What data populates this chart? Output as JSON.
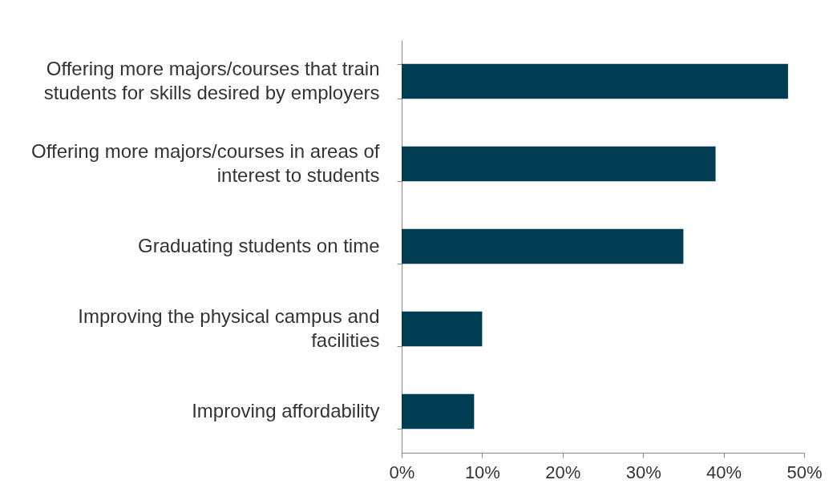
{
  "chart_data": {
    "type": "bar",
    "orientation": "horizontal",
    "categories": [
      "Offering more majors/courses that train students for skills desired by employers",
      "Offering more majors/courses in areas of interest to students",
      "Graduating students on time",
      "Improving the physical campus and facilities",
      "Improving affordability"
    ],
    "values": [
      48,
      39,
      35,
      10,
      9
    ],
    "color": "#003d52",
    "xlim": [
      0,
      50
    ],
    "xticks": [
      {
        "value": 0,
        "label": "0%"
      },
      {
        "value": 10,
        "label": "10%"
      },
      {
        "value": 20,
        "label": "20%"
      },
      {
        "value": 30,
        "label": "30%"
      },
      {
        "value": 40,
        "label": "40%"
      },
      {
        "value": 50,
        "label": "50%"
      }
    ],
    "grid": false
  }
}
